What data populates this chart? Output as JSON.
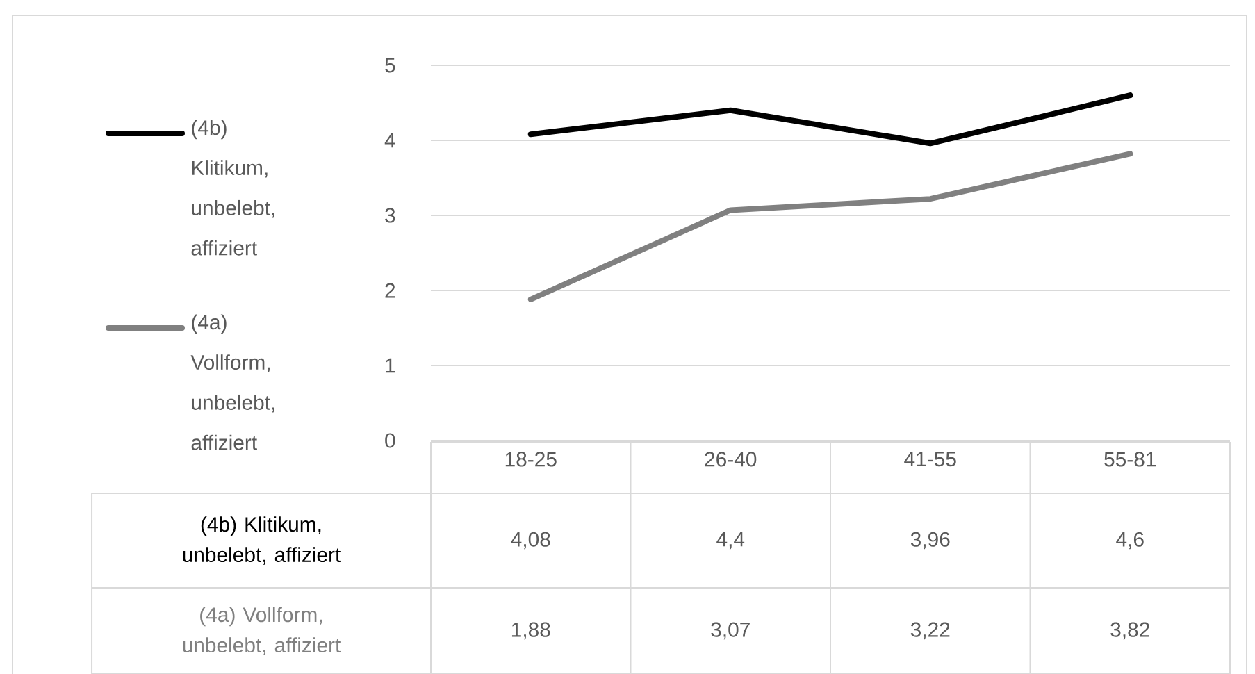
{
  "chart_data": {
    "type": "line",
    "categories": [
      "18-25",
      "26-40",
      "41-55",
      "55-81"
    ],
    "series": [
      {
        "name": "(4b) Klitikum, unbelebt, affiziert",
        "color": "#000000",
        "values": [
          4.08,
          4.4,
          3.96,
          4.6
        ],
        "value_labels": [
          "4,08",
          "4,4",
          "3,96",
          "4,6"
        ]
      },
      {
        "name": "(4a) Vollform, unbelebt, affiziert",
        "color": "#808080",
        "values": [
          1.88,
          3.07,
          3.22,
          3.82
        ],
        "value_labels": [
          "1,88",
          "3,07",
          "3,22",
          "3,82"
        ]
      }
    ],
    "ylim": [
      0,
      5
    ],
    "yticks": [
      0,
      1,
      2,
      3,
      4,
      5
    ],
    "grid": "y",
    "legend": "left",
    "marker": "none",
    "line_style": "solid"
  }
}
